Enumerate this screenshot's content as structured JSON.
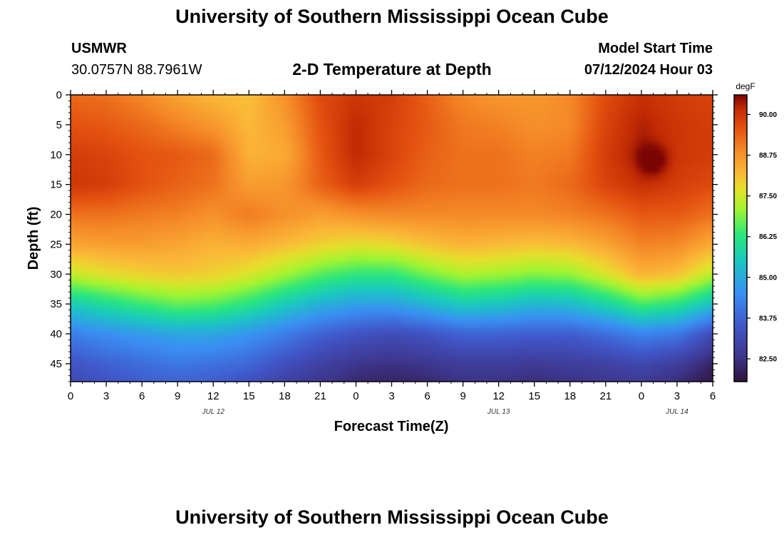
{
  "header": {
    "title": "University of Southern Mississippi Ocean Cube",
    "station": "USMWR",
    "coords": "30.0757N  88.7961W",
    "subtitle": "2-D Temperature at Depth",
    "model_label": "Model Start Time",
    "model_time": "07/12/2024 Hour 03"
  },
  "footer": {
    "title": "University of Southern Mississippi Ocean Cube"
  },
  "chart_data": {
    "type": "heatmap",
    "title": "2-D Temperature at Depth",
    "xlabel": "Forecast Time(Z)",
    "ylabel": "Depth (ft)",
    "units": "degF",
    "xlim": [
      0,
      54
    ],
    "ylim": [
      0,
      48
    ],
    "x_ticks": [
      0,
      3,
      6,
      9,
      12,
      15,
      18,
      21,
      24,
      27,
      30,
      33,
      36,
      39,
      42,
      45,
      48,
      51,
      54
    ],
    "x_tick_labels": [
      "0",
      "3",
      "6",
      "9",
      "12",
      "15",
      "18",
      "21",
      "0",
      "3",
      "6",
      "9",
      "12",
      "15",
      "18",
      "21",
      "0",
      "3",
      "6"
    ],
    "y_ticks": [
      0,
      5,
      10,
      15,
      20,
      25,
      30,
      35,
      40,
      45
    ],
    "y_tick_labels": [
      "0",
      "5",
      "10",
      "15",
      "20",
      "25",
      "30",
      "35",
      "40",
      "45"
    ],
    "date_labels": [
      {
        "x": 12,
        "text": "JUL 12"
      },
      {
        "x": 36,
        "text": "JUL 13"
      },
      {
        "x": 51,
        "text": "JUL 14"
      }
    ],
    "colorbar": {
      "min": 81.8,
      "max": 90.6,
      "ticks": [
        82.5,
        83.75,
        85.0,
        86.25,
        87.5,
        88.75,
        90.0
      ],
      "tick_labels": [
        "82.50",
        "83.75",
        "85.00",
        "86.25",
        "87.50",
        "88.75",
        "90.00"
      ]
    },
    "colormap": [
      [
        81.8,
        "#30123b"
      ],
      [
        82.6,
        "#3e378f"
      ],
      [
        83.5,
        "#4157c9"
      ],
      [
        84.5,
        "#3a8ff5"
      ],
      [
        85.5,
        "#1ac7c2"
      ],
      [
        86.3,
        "#29e77c"
      ],
      [
        87.1,
        "#a4f52f"
      ],
      [
        87.7,
        "#e5e02b"
      ],
      [
        88.2,
        "#fbb938"
      ],
      [
        88.9,
        "#f58a28"
      ],
      [
        89.6,
        "#e45110"
      ],
      [
        90.2,
        "#c12a04"
      ],
      [
        90.6,
        "#7a0403"
      ]
    ],
    "depths_ft": [
      0,
      5,
      10,
      15,
      20,
      25,
      30,
      35,
      40,
      45,
      48
    ],
    "series": [
      {
        "name": "t=0",
        "values": [
          89.3,
          89.6,
          89.9,
          90.0,
          89.2,
          88.5,
          87.4,
          85.6,
          84.2,
          83.4,
          83.1
        ]
      },
      {
        "name": "t=3",
        "values": [
          89.2,
          89.5,
          89.8,
          89.9,
          89.2,
          88.6,
          87.7,
          86.0,
          84.5,
          83.7,
          83.4
        ]
      },
      {
        "name": "t=6",
        "values": [
          88.9,
          89.3,
          89.6,
          89.6,
          89.1,
          88.6,
          87.9,
          86.4,
          84.7,
          83.9,
          83.6
        ]
      },
      {
        "name": "t=9",
        "values": [
          88.5,
          89.0,
          89.5,
          89.4,
          89.0,
          88.5,
          88.0,
          86.7,
          84.9,
          84.1,
          83.7
        ]
      },
      {
        "name": "t=12",
        "values": [
          88.2,
          88.7,
          89.3,
          89.2,
          88.8,
          88.3,
          87.9,
          86.6,
          84.9,
          84.0,
          83.6
        ]
      },
      {
        "name": "t=15",
        "values": [
          88.1,
          88.2,
          88.3,
          88.6,
          89.1,
          88.4,
          87.6,
          86.2,
          84.6,
          83.8,
          83.3
        ]
      },
      {
        "name": "t=18",
        "values": [
          88.8,
          88.6,
          88.4,
          88.7,
          88.8,
          88.2,
          87.1,
          85.6,
          84.2,
          83.3,
          82.9
        ]
      },
      {
        "name": "t=21",
        "values": [
          89.7,
          89.6,
          89.5,
          89.4,
          88.6,
          87.9,
          86.6,
          85.1,
          83.7,
          82.9,
          82.6
        ]
      },
      {
        "name": "t=24",
        "values": [
          90.0,
          90.2,
          90.2,
          89.9,
          88.8,
          87.7,
          86.3,
          84.8,
          83.4,
          82.6,
          82.3
        ]
      },
      {
        "name": "t=27",
        "values": [
          89.9,
          89.8,
          89.8,
          89.6,
          88.9,
          87.8,
          86.3,
          84.8,
          83.2,
          82.5,
          82.2
        ]
      },
      {
        "name": "t=30",
        "values": [
          89.4,
          89.5,
          89.4,
          89.3,
          88.9,
          88.1,
          86.8,
          85.2,
          83.4,
          82.6,
          82.3
        ]
      },
      {
        "name": "t=33",
        "values": [
          88.9,
          89.1,
          89.2,
          89.2,
          88.9,
          88.3,
          87.2,
          85.6,
          83.7,
          82.8,
          82.5
        ]
      },
      {
        "name": "t=36",
        "values": [
          88.7,
          89.0,
          89.2,
          89.2,
          88.9,
          88.2,
          87.1,
          85.5,
          83.7,
          82.8,
          82.5
        ]
      },
      {
        "name": "t=39",
        "values": [
          88.7,
          88.8,
          89.0,
          89.1,
          88.9,
          88.1,
          86.9,
          85.2,
          83.6,
          82.7,
          82.4
        ]
      },
      {
        "name": "t=42",
        "values": [
          88.9,
          88.9,
          89.1,
          89.3,
          89.0,
          88.2,
          87.0,
          85.3,
          83.6,
          82.8,
          82.5
        ]
      },
      {
        "name": "t=45",
        "values": [
          89.7,
          89.8,
          89.9,
          89.8,
          89.2,
          88.5,
          87.6,
          85.8,
          83.9,
          82.9,
          82.6
        ]
      },
      {
        "name": "t=48",
        "values": [
          90.1,
          90.3,
          90.4,
          90.1,
          89.5,
          89.0,
          88.3,
          86.5,
          84.3,
          83.1,
          82.7
        ]
      },
      {
        "name": "t=51",
        "values": [
          89.9,
          90.0,
          90.0,
          89.9,
          89.5,
          88.9,
          88.1,
          86.2,
          84.1,
          82.8,
          82.4
        ]
      },
      {
        "name": "t=54",
        "values": [
          89.8,
          89.9,
          89.9,
          89.7,
          89.2,
          88.4,
          87.3,
          85.4,
          83.2,
          82.2,
          81.9
        ]
      }
    ],
    "anomaly": {
      "x": 49.0,
      "y": 11.0,
      "value": 91.0
    }
  }
}
